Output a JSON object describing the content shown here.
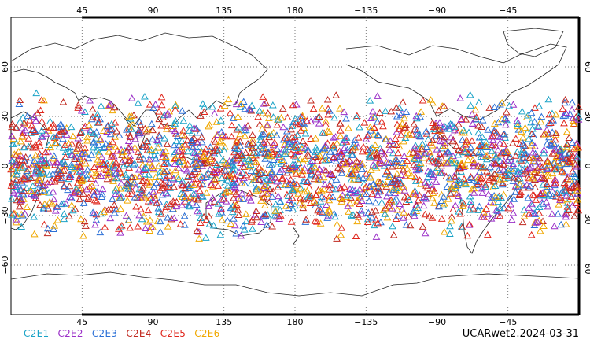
{
  "map": {
    "projection": "cylindrical-equidistant",
    "lon_range": [
      0,
      360
    ],
    "lat_range": [
      -90,
      90
    ],
    "grid": "dotted",
    "central_continent_outline": true
  },
  "axes": {
    "top_lon_labels": [
      "45",
      "90",
      "135",
      "180",
      "−135",
      "−90",
      "−45"
    ],
    "bottom_lon_labels": [
      "45",
      "90",
      "135",
      "180",
      "−135",
      "−90",
      "−45"
    ],
    "left_lat_labels": [
      "60",
      "30",
      "0",
      "−30",
      "−60"
    ],
    "right_lat_labels": [
      "60",
      "30",
      "0",
      "−30",
      "−60"
    ]
  },
  "legend": {
    "items": [
      {
        "label": "C2E1",
        "color": "#1aa3c7"
      },
      {
        "label": "C2E2",
        "color": "#9b30c8"
      },
      {
        "label": "C2E3",
        "color": "#2a6fd6"
      },
      {
        "label": "C2E4",
        "color": "#c0281e"
      },
      {
        "label": "C2E5",
        "color": "#e0261c"
      },
      {
        "label": "C2E6",
        "color": "#f0a800"
      }
    ]
  },
  "footer": {
    "product_id": "UCARwet2.2024-03-31"
  },
  "chart_data": {
    "type": "scatter",
    "marker": "open-triangle",
    "lat_band": [
      -45,
      45
    ],
    "lon_range": [
      0,
      360
    ],
    "series": [
      {
        "name": "C2E1",
        "color": "#1aa3c7"
      },
      {
        "name": "C2E2",
        "color": "#9b30c8"
      },
      {
        "name": "C2E3",
        "color": "#2a6fd6"
      },
      {
        "name": "C2E4",
        "color": "#c0281e"
      },
      {
        "name": "C2E5",
        "color": "#e0261c"
      },
      {
        "name": "C2E6",
        "color": "#f0a800"
      }
    ]
  }
}
